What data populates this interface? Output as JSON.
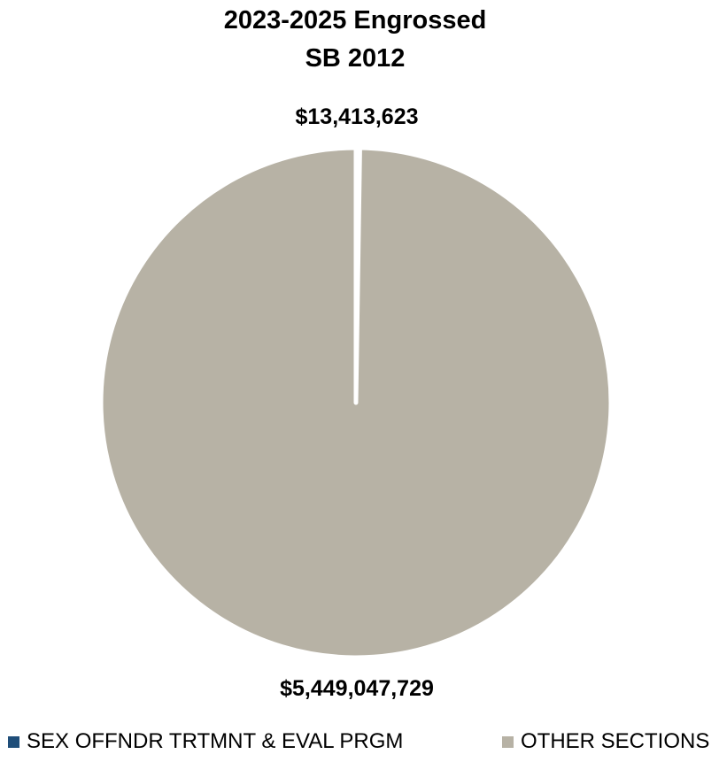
{
  "chart_data": {
    "type": "pie",
    "title_lines": [
      "2023-2025 Engrossed",
      "SB 2012"
    ],
    "slices": [
      {
        "name": "SEX OFFNDR TRTMNT & EVAL PRGM",
        "value": 13413623,
        "label": "$13,413,623",
        "color": "#1F4E79"
      },
      {
        "name": "OTHER SECTIONS",
        "value": 5449047729,
        "label": "$5,449,047,729",
        "color": "#B7B2A5"
      }
    ],
    "legend_position": "bottom",
    "separator_color": "#FFFFFF"
  }
}
